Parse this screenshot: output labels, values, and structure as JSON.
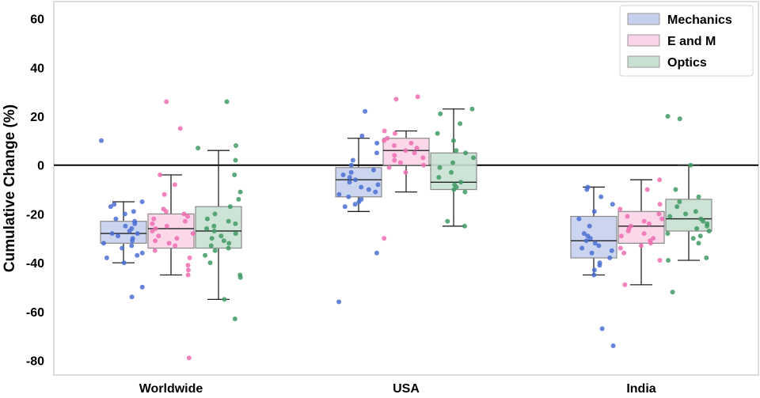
{
  "chart_data": {
    "type": "box",
    "title": "",
    "xlabel": "",
    "ylabel": "Cumulative Change (%)",
    "ylim": [
      -86,
      67
    ],
    "yticks": [
      60,
      40,
      20,
      0,
      -20,
      -40,
      -60,
      -80
    ],
    "grid": false,
    "legend_position": "top-right",
    "zero_line": 0,
    "categories": [
      "Worldwide",
      "USA",
      "India"
    ],
    "series": [
      {
        "name": "Mechanics",
        "color": "#4a6fd4",
        "box_fill": "#c7d0ee",
        "boxes": [
          {
            "q1": -32,
            "median": -28,
            "q3": -23,
            "whisker_low": -40,
            "whisker_high": -15
          },
          {
            "q1": -13,
            "median": -6,
            "q3": -1,
            "whisker_low": -19,
            "whisker_high": 11
          },
          {
            "q1": -38,
            "median": -31,
            "q3": -21,
            "whisker_low": -45,
            "whisker_high": -9
          }
        ],
        "points": [
          [
            10,
            -15,
            -16,
            -17,
            -19,
            -20,
            -22,
            -23,
            -24,
            -25,
            -26,
            -27,
            -28,
            -28,
            -29,
            -30,
            -31,
            -32,
            -33,
            -34,
            -36,
            -37,
            -38,
            -40,
            -50,
            -54
          ],
          [
            22,
            12,
            9,
            5,
            2,
            0,
            -2,
            -3,
            -4,
            -5,
            -6,
            -7,
            -8,
            -9,
            -10,
            -11,
            -12,
            -13,
            -14,
            -15,
            -16,
            -17,
            -36,
            -56
          ],
          [
            -9,
            -10,
            -13,
            -16,
            -19,
            -22,
            -25,
            -28,
            -29,
            -30,
            -31,
            -32,
            -33,
            -34,
            -35,
            -36,
            -38,
            -40,
            -41,
            -43,
            -45,
            -67,
            -74
          ]
        ]
      },
      {
        "name": "E and M",
        "color": "#ee6fb2",
        "box_fill": "#f9d3e7",
        "boxes": [
          {
            "q1": -34,
            "median": -26,
            "q3": -20,
            "whisker_low": -45,
            "whisker_high": -4
          },
          {
            "q1": 0,
            "median": 6,
            "q3": 11,
            "whisker_low": -11,
            "whisker_high": 14
          },
          {
            "q1": -32,
            "median": -25,
            "q3": -19,
            "whisker_low": -49,
            "whisker_high": -6
          }
        ],
        "points": [
          [
            26,
            15,
            -4,
            -8,
            -12,
            -18,
            -19,
            -20,
            -21,
            -22,
            -23,
            -24,
            -25,
            -26,
            -27,
            -28,
            -29,
            -30,
            -31,
            -32,
            -33,
            -35,
            -38,
            -41,
            -43,
            -45,
            -79
          ],
          [
            28,
            27,
            14,
            13,
            11,
            10,
            9,
            8,
            7,
            6,
            5,
            4,
            3,
            2,
            1,
            0,
            -1,
            -3,
            -30
          ],
          [
            -6,
            -10,
            -16,
            -18,
            -20,
            -21,
            -22,
            -23,
            -24,
            -25,
            -26,
            -27,
            -28,
            -29,
            -30,
            -31,
            -32,
            -33,
            -34,
            -36,
            -39,
            -49
          ]
        ]
      },
      {
        "name": "Optics",
        "color": "#3f9a64",
        "box_fill": "#c8e0d1",
        "boxes": [
          {
            "q1": -34,
            "median": -27,
            "q3": -17,
            "whisker_low": -55,
            "whisker_high": 6
          },
          {
            "q1": -10,
            "median": -7,
            "q3": 5,
            "whisker_low": -25,
            "whisker_high": 23
          },
          {
            "q1": -27,
            "median": -22,
            "q3": -14,
            "whisker_low": -39,
            "whisker_high": 0
          }
        ],
        "points": [
          [
            26,
            8,
            7,
            2,
            -4,
            -11,
            -14,
            -17,
            -20,
            -22,
            -23,
            -24,
            -25,
            -26,
            -27,
            -28,
            -29,
            -30,
            -31,
            -32,
            -33,
            -34,
            -35,
            -37,
            -40,
            -45,
            -46,
            -55,
            -63
          ],
          [
            23,
            21,
            17,
            13,
            10,
            6,
            5,
            3,
            1,
            -1,
            -3,
            -5,
            -7,
            -8,
            -9,
            -10,
            -11,
            -23,
            -25
          ],
          [
            20,
            19,
            0,
            -10,
            -13,
            -15,
            -17,
            -19,
            -20,
            -21,
            -22,
            -23,
            -24,
            -25,
            -26,
            -27,
            -28,
            -29,
            -30,
            -32,
            -38,
            -39,
            -52
          ]
        ]
      }
    ]
  }
}
